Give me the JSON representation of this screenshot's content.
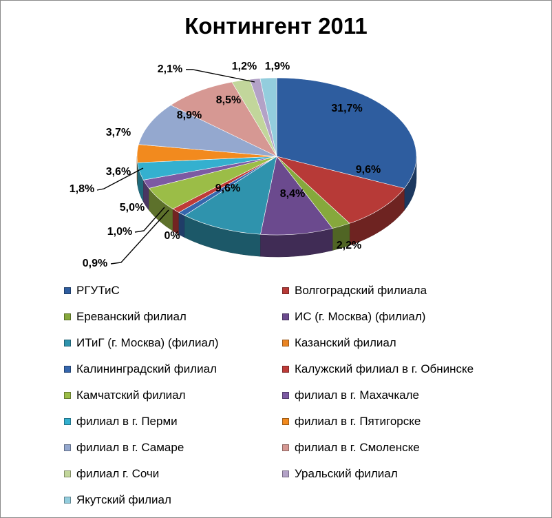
{
  "chart_data": {
    "type": "pie",
    "title": "Контингент 2011",
    "legend_placement": "bottom",
    "slices": [
      {
        "label": "РГУТиС",
        "value_label": "31,7%",
        "value": 31.7,
        "color": "#2e5d9f"
      },
      {
        "label": "Волгоградский филиала",
        "value_label": "9,6%",
        "value": 9.6,
        "color": "#b73a37"
      },
      {
        "label": "Ереванский филиал",
        "value_label": "2,2%",
        "value": 2.2,
        "color": "#86a83c"
      },
      {
        "label": "ИС (г. Москва) (филиал)",
        "value_label": "8,4%",
        "value": 8.4,
        "color": "#6b4a8e"
      },
      {
        "label": "ИТиГ (г. Москва) (филиал)",
        "value_label": "9,6%",
        "value": 9.6,
        "color": "#2f93ad"
      },
      {
        "label": "Казанский филиал",
        "value_label": "0%",
        "value": 0,
        "color": "#e98423"
      },
      {
        "label": "Калининградский филиал",
        "value_label": "0,9%",
        "value": 0.9,
        "color": "#3566ad"
      },
      {
        "label": "Калужский филиал в г. Обнинске",
        "value_label": "1,0%",
        "value": 1.0,
        "color": "#be3b38"
      },
      {
        "label": "Камчатский филиал",
        "value_label": "5,0%",
        "value": 5.0,
        "color": "#9bbd47"
      },
      {
        "label": "филиал в г. Махачкале",
        "value_label": "1,8%",
        "value": 1.8,
        "color": "#7c5aa3"
      },
      {
        "label": "филиал в г. Перми",
        "value_label": "3,6%",
        "value": 3.6,
        "color": "#34b0cf"
      },
      {
        "label": "филиал в г. Пятигорске",
        "value_label": "3,7%",
        "value": 3.7,
        "color": "#f28a1e"
      },
      {
        "label": "филиал в г. Самаре",
        "value_label": "8,9%",
        "value": 8.9,
        "color": "#94a8cf"
      },
      {
        "label": "филиал в г. Смоленске",
        "value_label": "8,5%",
        "value": 8.5,
        "color": "#d69893"
      },
      {
        "label": "филиал г. Сочи",
        "value_label": "2,1%",
        "value": 2.1,
        "color": "#c2d69b"
      },
      {
        "label": "Уральский филиал",
        "value_label": "1,2%",
        "value": 1.2,
        "color": "#b3a2c7"
      },
      {
        "label": "Якутский филиал",
        "value_label": "1,9%",
        "value": 1.9,
        "color": "#93cddd"
      }
    ]
  }
}
